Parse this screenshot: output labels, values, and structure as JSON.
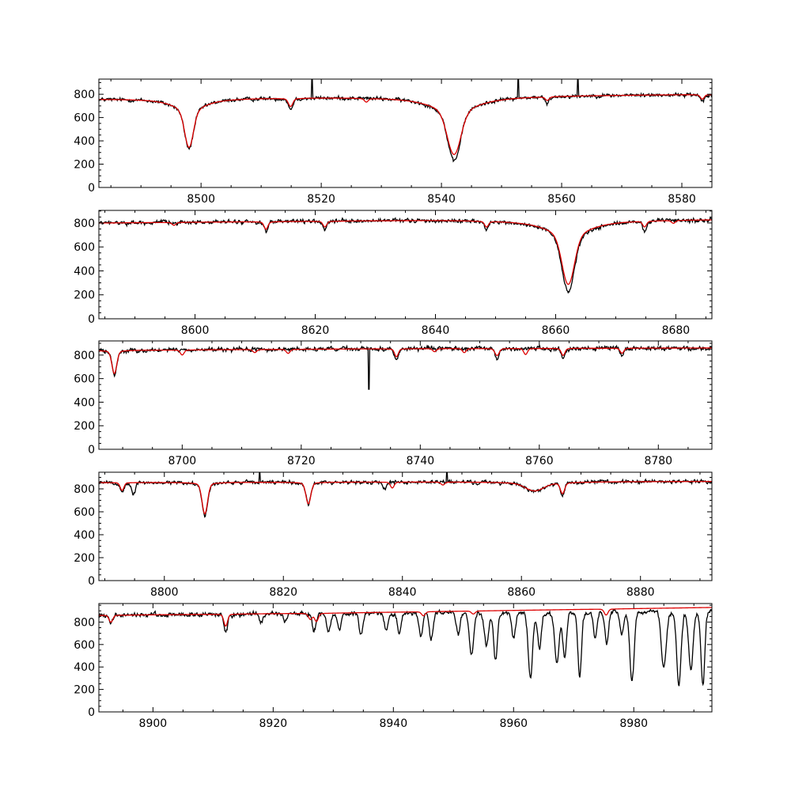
{
  "figure": {
    "background": "#ffffff",
    "axes_color": "#000000"
  },
  "chart_data": [
    {
      "type": "line",
      "xlim": [
        8483,
        8585
      ],
      "ylim": [
        0,
        930
      ],
      "xticks": [
        8500,
        8520,
        8540,
        8560,
        8580
      ],
      "yticks": [
        0,
        200,
        400,
        600,
        800
      ],
      "series": [
        {
          "color": "#000000",
          "role": "observed"
        },
        {
          "color": "#dd0000",
          "role": "model"
        }
      ],
      "continuum": [
        [
          8483,
          760
        ],
        [
          8520,
          775
        ],
        [
          8585,
          800
        ]
      ],
      "model_lines": [
        [
          8498.0,
          420,
          0.7
        ],
        [
          8514.9,
          90,
          0.35
        ],
        [
          8527.5,
          40,
          0.3
        ],
        [
          8542.1,
          500,
          1.1
        ],
        [
          8557.6,
          40,
          0.3
        ],
        [
          8583.4,
          50,
          0.3
        ]
      ],
      "obs_lines": [
        [
          8498.0,
          430,
          0.7
        ],
        [
          8514.9,
          120,
          0.35
        ],
        [
          8542.1,
          560,
          1.0
        ],
        [
          8557.6,
          80,
          0.3
        ],
        [
          8583.4,
          70,
          0.3
        ]
      ],
      "spikes": [
        [
          8518.5,
          930
        ],
        [
          8552.8,
          930
        ],
        [
          8562.7,
          930
        ]
      ],
      "noise": 18,
      "wing": 0.3
    },
    {
      "type": "line",
      "xlim": [
        8584,
        8686
      ],
      "ylim": [
        0,
        905
      ],
      "xticks": [
        8600,
        8620,
        8640,
        8660,
        8680
      ],
      "yticks": [
        0,
        200,
        400,
        600,
        800
      ],
      "series": [
        {
          "color": "#000000",
          "role": "observed"
        },
        {
          "color": "#dd0000",
          "role": "model"
        }
      ],
      "continuum": [
        [
          8584,
          800
        ],
        [
          8640,
          825
        ],
        [
          8686,
          830
        ]
      ],
      "model_lines": [
        [
          8596.5,
          30,
          0.3
        ],
        [
          8611.8,
          80,
          0.3
        ],
        [
          8621.6,
          60,
          0.3
        ],
        [
          8648.5,
          60,
          0.3
        ],
        [
          8662.1,
          540,
          1.0
        ],
        [
          8674.8,
          60,
          0.3
        ],
        [
          8679.6,
          30,
          0.3
        ]
      ],
      "obs_lines": [
        [
          8611.8,
          100,
          0.3
        ],
        [
          8621.6,
          90,
          0.3
        ],
        [
          8648.5,
          90,
          0.3
        ],
        [
          8662.1,
          600,
          1.0
        ],
        [
          8674.8,
          110,
          0.3
        ]
      ],
      "spikes": [],
      "noise": 18,
      "wing": 0.28
    },
    {
      "type": "line",
      "xlim": [
        8686,
        8789
      ],
      "ylim": [
        0,
        920
      ],
      "xticks": [
        8700,
        8720,
        8740,
        8760,
        8780
      ],
      "yticks": [
        0,
        200,
        400,
        600,
        800
      ],
      "series": [
        {
          "color": "#000000",
          "role": "observed"
        },
        {
          "color": "#dd0000",
          "role": "model"
        }
      ],
      "continuum": [
        [
          8686,
          840
        ],
        [
          8740,
          855
        ],
        [
          8789,
          860
        ]
      ],
      "model_lines": [
        [
          8688.6,
          230,
          0.4
        ],
        [
          8700.0,
          50,
          0.3
        ],
        [
          8712.2,
          30,
          0.3
        ],
        [
          8717.8,
          40,
          0.3
        ],
        [
          8736.0,
          80,
          0.3
        ],
        [
          8742.4,
          30,
          0.3
        ],
        [
          8747.4,
          40,
          0.3
        ],
        [
          8752.9,
          70,
          0.35
        ],
        [
          8757.7,
          60,
          0.3
        ],
        [
          8764.0,
          70,
          0.3
        ],
        [
          8773.9,
          50,
          0.3
        ]
      ],
      "obs_lines": [
        [
          8688.6,
          240,
          0.4
        ],
        [
          8736.0,
          110,
          0.3
        ],
        [
          8752.9,
          100,
          0.35
        ],
        [
          8764.0,
          100,
          0.3
        ],
        [
          8773.9,
          80,
          0.3
        ]
      ],
      "spikes": [
        [
          8731.4,
          510
        ]
      ],
      "noise": 20,
      "wing": 0.2
    },
    {
      "type": "line",
      "xlim": [
        8789,
        8892
      ],
      "ylim": [
        0,
        945
      ],
      "xticks": [
        8800,
        8820,
        8840,
        8860,
        8880
      ],
      "yticks": [
        0,
        200,
        400,
        600,
        800
      ],
      "series": [
        {
          "color": "#000000",
          "role": "observed"
        },
        {
          "color": "#dd0000",
          "role": "model"
        }
      ],
      "continuum": [
        [
          8789,
          855
        ],
        [
          8850,
          862
        ],
        [
          8892,
          865
        ]
      ],
      "model_lines": [
        [
          8792.9,
          80,
          0.3
        ],
        [
          8806.8,
          320,
          0.45
        ],
        [
          8824.2,
          220,
          0.4
        ],
        [
          8838.3,
          60,
          0.3
        ],
        [
          8846.8,
          30,
          0.3
        ],
        [
          8862.2,
          80,
          1.5
        ],
        [
          8866.9,
          110,
          0.35
        ]
      ],
      "obs_lines": [
        [
          8792.9,
          100,
          0.3
        ],
        [
          8794.8,
          120,
          0.3
        ],
        [
          8806.8,
          340,
          0.45
        ],
        [
          8824.2,
          220,
          0.4
        ],
        [
          8837.0,
          70,
          0.3
        ],
        [
          8862.2,
          80,
          1.5
        ],
        [
          8866.9,
          130,
          0.35
        ]
      ],
      "spikes": [
        [
          8847.5,
          945
        ],
        [
          8816.0,
          940
        ]
      ],
      "noise": 18,
      "wing": 0.2
    },
    {
      "type": "line",
      "xlim": [
        8891,
        8993
      ],
      "ylim": [
        0,
        965
      ],
      "xticks": [
        8900,
        8920,
        8940,
        8960,
        8980
      ],
      "yticks": [
        0,
        200,
        400,
        600,
        800
      ],
      "series": [
        {
          "color": "#000000",
          "role": "observed"
        },
        {
          "color": "#dd0000",
          "role": "model"
        }
      ],
      "continuum": [
        [
          8891,
          860
        ],
        [
          8930,
          880
        ],
        [
          8993,
          930
        ]
      ],
      "model_lines": [
        [
          8893.0,
          70,
          0.3
        ],
        [
          8912.1,
          120,
          0.3
        ],
        [
          8926.2,
          60,
          0.3
        ],
        [
          8927.2,
          80,
          0.3
        ],
        [
          8945.0,
          40,
          0.3
        ],
        [
          8953.3,
          30,
          0.3
        ],
        [
          8975.4,
          60,
          0.3
        ]
      ],
      "obs_lines": [
        [
          8893.0,
          80,
          0.3
        ],
        [
          8912.1,
          180,
          0.3
        ],
        [
          8918.0,
          90,
          0.3
        ],
        [
          8922.0,
          80,
          0.3
        ],
        [
          8926.8,
          180,
          0.3
        ],
        [
          8929.2,
          190,
          0.3
        ],
        [
          8931.0,
          160,
          0.3
        ],
        [
          8934.6,
          220,
          0.3
        ],
        [
          8938.8,
          180,
          0.3
        ],
        [
          8941.0,
          200,
          0.3
        ],
        [
          8944.6,
          230,
          0.3
        ],
        [
          8946.3,
          260,
          0.3
        ],
        [
          8950.8,
          220,
          0.3
        ],
        [
          8953.0,
          430,
          0.35
        ],
        [
          8955.5,
          320,
          0.35
        ],
        [
          8957.0,
          480,
          0.3
        ],
        [
          8960.0,
          260,
          0.3
        ],
        [
          8962.8,
          660,
          0.35
        ],
        [
          8964.3,
          360,
          0.3
        ],
        [
          8967.2,
          520,
          0.35
        ],
        [
          8968.5,
          450,
          0.3
        ],
        [
          8971.0,
          660,
          0.3
        ],
        [
          8973.6,
          260,
          0.3
        ],
        [
          8975.5,
          320,
          0.3
        ],
        [
          8978.0,
          230,
          0.3
        ],
        [
          8979.7,
          720,
          0.35
        ],
        [
          8985.0,
          580,
          0.4
        ],
        [
          8987.5,
          740,
          0.35
        ],
        [
          8989.5,
          600,
          0.35
        ],
        [
          8991.5,
          760,
          0.3
        ]
      ],
      "spikes": [],
      "noise": 22,
      "wing": 0.15
    }
  ]
}
